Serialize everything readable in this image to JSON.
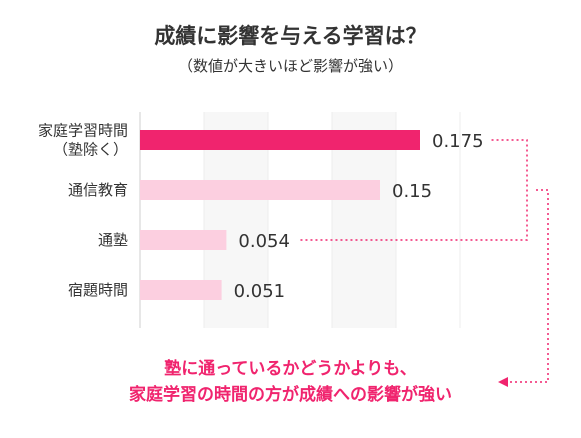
{
  "colors": {
    "highlight": "#f0246e",
    "bar": "#fccfe0",
    "panel_a": "#f7f7f7",
    "panel_b": "#ececec",
    "text": "#333333"
  },
  "chart_data": {
    "type": "bar",
    "orientation": "horizontal",
    "title": "成績に影響を与える学習は？",
    "subtitle": "（数値が大きいほど影響が強い）",
    "categories": [
      [
        "家庭学習時間",
        "（塾除く）"
      ],
      [
        "通信教育"
      ],
      [
        "通塾"
      ],
      [
        "宿題時間"
      ]
    ],
    "values": [
      0.175,
      0.15,
      0.054,
      0.051
    ],
    "value_labels": [
      "0.175",
      "0.15",
      "0.054",
      "0.051"
    ],
    "highlight_index": 0,
    "xlim": [
      0,
      0.2
    ],
    "grid": true
  },
  "annotation": {
    "lines": [
      "塾に通っているかどうかよりも、",
      "家庭学習の時間の方が成績への影響が強い"
    ]
  }
}
